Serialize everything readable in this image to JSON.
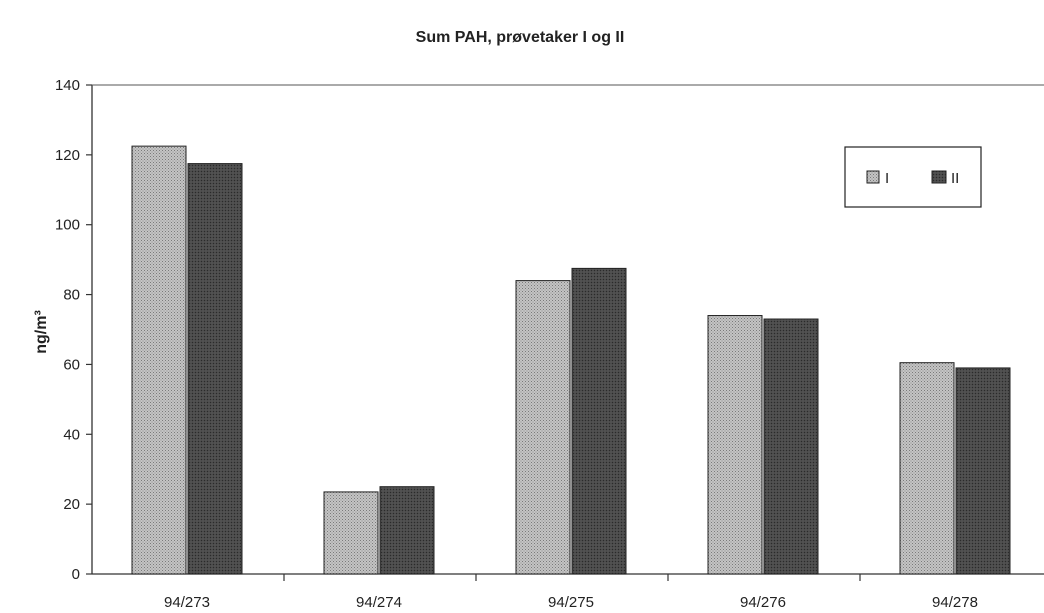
{
  "chart_data": {
    "type": "bar",
    "title": "Sum PAH, prøvetaker I og II",
    "ylabel": "ng/m³",
    "xlabel": "",
    "categories": [
      "94/273",
      "94/274",
      "94/275",
      "94/276",
      "94/278"
    ],
    "series": [
      {
        "name": "I",
        "values": [
          122.5,
          23.5,
          84,
          74,
          60.5
        ],
        "color": "#b3b3b3"
      },
      {
        "name": "II",
        "values": [
          117.5,
          25,
          87.5,
          73,
          59
        ],
        "color": "#474747"
      }
    ],
    "ylim": [
      0,
      140
    ],
    "yticks": [
      0,
      20,
      40,
      60,
      80,
      100,
      120,
      140
    ],
    "grid": false,
    "legend_position": "top-right"
  }
}
